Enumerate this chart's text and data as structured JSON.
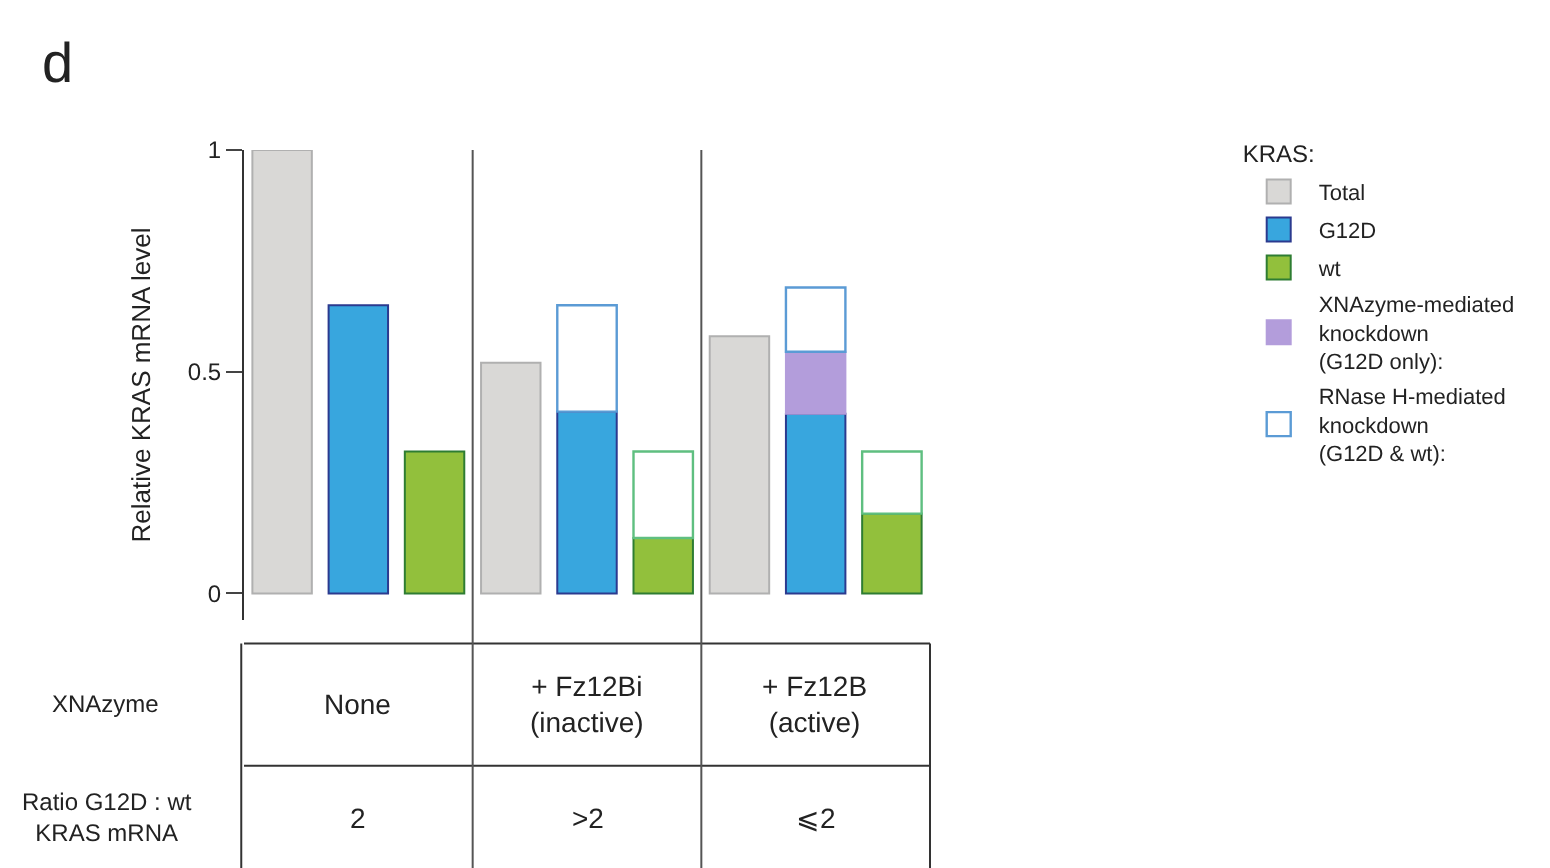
{
  "chart_data": {
    "type": "bar",
    "stacked": true,
    "ylabel": "Relative KRAS mRNA level",
    "legend_title": "KRAS:",
    "legend": "right",
    "categories": [
      null,
      null,
      null,
      null,
      null,
      null,
      null,
      null,
      null
    ],
    "ylim": [
      -0.06,
      1
    ],
    "yticks": [
      0,
      0.5,
      1
    ],
    "grid": false,
    "series": [
      {
        "name": "Total",
        "color": "#d9d8d6",
        "values": [
          1,
          null,
          null,
          0.52,
          null,
          null,
          0.58,
          null,
          null
        ]
      },
      {
        "name": "G12D",
        "color": "#38a6de",
        "values": [
          null,
          0.65,
          null,
          null,
          0.41,
          null,
          null,
          0.405,
          null
        ]
      },
      {
        "name": "wt",
        "color": "#92c03c",
        "values": [
          null,
          null,
          0.32,
          null,
          null,
          0.125,
          null,
          null,
          0.18
        ]
      },
      {
        "name": "XNAzyme-mediated\nknockdown\n(G12D only):",
        "color": "#b39ddb",
        "values": [
          null,
          null,
          null,
          null,
          null,
          null,
          null,
          0.14,
          null
        ]
      },
      {
        "name": "RNase H-mediated\nknockdown\n(G12D & wt):",
        "color": "#5b9bd5",
        "colors": [
          "#5b9bd5",
          "#5b9bd5",
          "#5b9bd5",
          "#5b9bd5",
          "#5b9bd5",
          "#5fbf80",
          "#5b9bd5",
          "#5b9bd5",
          "#5fbf80"
        ],
        "values": [
          null,
          null,
          null,
          null,
          0.24,
          0.195,
          null,
          0.145,
          0.14
        ]
      }
    ],
    "annotations": [
      "d",
      "XNAzyme",
      "None",
      "+ Fz12Bi\n(inactive)",
      "+ Fz12B\n(active)",
      "Ratio G12D : wt\nKRAS mRNA",
      "2",
      ">2",
      "⩽2"
    ]
  }
}
